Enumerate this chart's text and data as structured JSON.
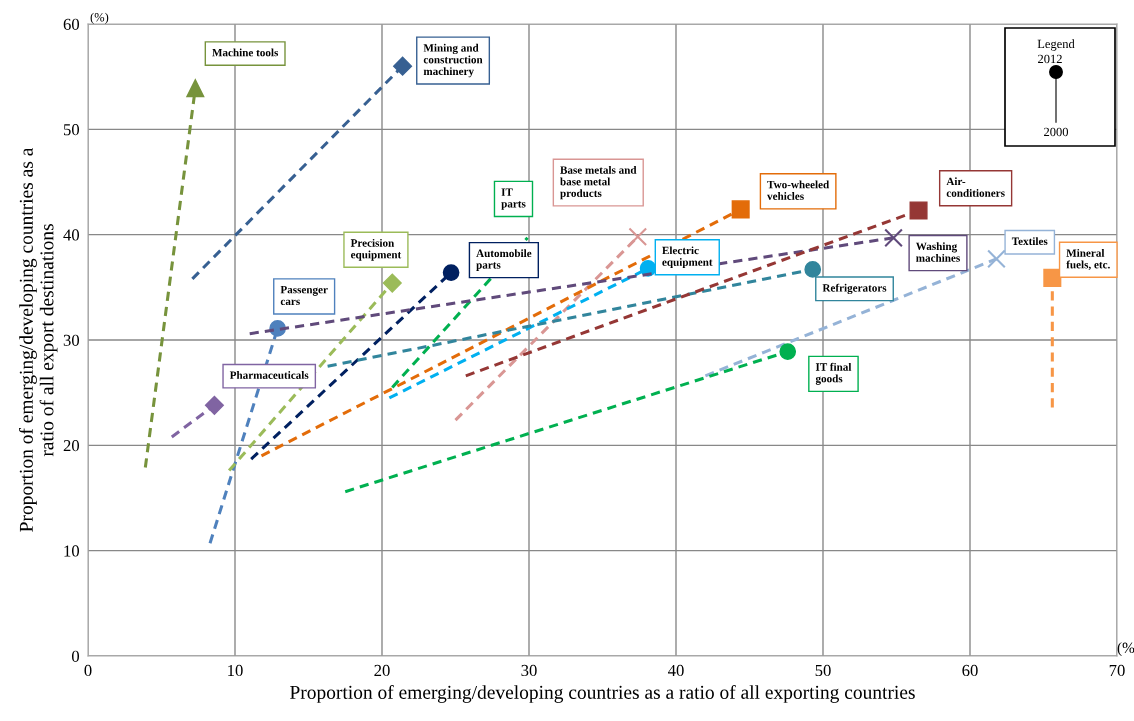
{
  "chart_data": {
    "type": "line",
    "xlabel": "Proportion of emerging/developing countries as a ratio of all exporting countries",
    "ylabel": "Proportion of emerging/developing countries as a\nratio of all export destinations",
    "xlim": [
      0,
      70
    ],
    "ylim": [
      0,
      60
    ],
    "xticks": [
      0,
      10,
      20,
      30,
      40,
      50,
      60,
      70
    ],
    "yticks": [
      0,
      10,
      20,
      30,
      40,
      50,
      60
    ],
    "grid": true,
    "line_style": "dashed",
    "annotations": [
      "(%)",
      "(%",
      "Legend",
      "2012",
      "2000"
    ],
    "series": [
      {
        "name": "Machine tools",
        "color": "#77933c",
        "marker": "triangle",
        "x": [
          3.9,
          7.3
        ],
        "values": [
          17.9,
          53.9
        ]
      },
      {
        "name": "Mining and\nconstruction\nmachinery",
        "color": "#376092",
        "marker": "diamond",
        "x": [
          7.1,
          21.4
        ],
        "values": [
          35.8,
          56.0
        ]
      },
      {
        "name": "Passenger\ncars",
        "color": "#4f81bd",
        "marker": "circle",
        "x": [
          8.3,
          12.9
        ],
        "values": [
          10.7,
          31.1
        ]
      },
      {
        "name": "Pharmaceuticals",
        "color": "#8064a2",
        "marker": "diamond",
        "x": [
          5.7,
          8.6
        ],
        "values": [
          20.8,
          23.8
        ]
      },
      {
        "name": "Precision\nequipment",
        "color": "#9bbb59",
        "marker": "diamond",
        "x": [
          9.6,
          20.7
        ],
        "values": [
          17.6,
          35.4
        ]
      },
      {
        "name": "Automobile\nparts",
        "color": "#002060",
        "marker": "circle",
        "x": [
          11.1,
          24.7
        ],
        "values": [
          18.7,
          36.4
        ]
      },
      {
        "name": "IT\nparts",
        "color": "#00b050",
        "marker": "none",
        "x": [
          20.7,
          29.9
        ],
        "values": [
          25.5,
          39.7
        ]
      },
      {
        "name": "Base metals and\nbase metal\nproducts",
        "color": "#d99694",
        "marker": "cross",
        "x": [
          25.0,
          37.4
        ],
        "values": [
          22.4,
          39.8
        ]
      },
      {
        "name": "Two-wheeled\nvehicles",
        "color": "#e36c09",
        "marker": "square",
        "x": [
          11.8,
          44.4
        ],
        "values": [
          19.0,
          42.4
        ]
      },
      {
        "name": "Electric\nequipment",
        "color": "#00b0f0",
        "marker": "circle",
        "x": [
          20.5,
          38.1
        ],
        "values": [
          24.5,
          36.8
        ]
      },
      {
        "name": "Refrigerators",
        "color": "#31859c",
        "marker": "circle",
        "x": [
          16.3,
          49.3
        ],
        "values": [
          27.5,
          36.7
        ]
      },
      {
        "name": "Washing\nmachines",
        "color": "#604a7b",
        "marker": "cross",
        "x": [
          11.0,
          54.8
        ],
        "values": [
          30.6,
          39.7
        ]
      },
      {
        "name": "Air-\nconditioners",
        "color": "#953735",
        "marker": "square",
        "x": [
          25.7,
          56.5
        ],
        "values": [
          26.6,
          42.3
        ]
      },
      {
        "name": "Textiles",
        "color": "#95b3d7",
        "marker": "cross",
        "x": [
          42.0,
          61.8
        ],
        "values": [
          26.6,
          37.7
        ]
      },
      {
        "name": "IT final\ngoods",
        "color": "#00b050",
        "marker": "circle",
        "x": [
          17.5,
          47.6
        ],
        "values": [
          15.6,
          28.9
        ]
      },
      {
        "name": "Mineral\nfuels, etc.",
        "color": "#f79646",
        "marker": "square",
        "x": [
          65.6,
          65.6
        ],
        "values": [
          23.6,
          35.9
        ]
      }
    ]
  }
}
